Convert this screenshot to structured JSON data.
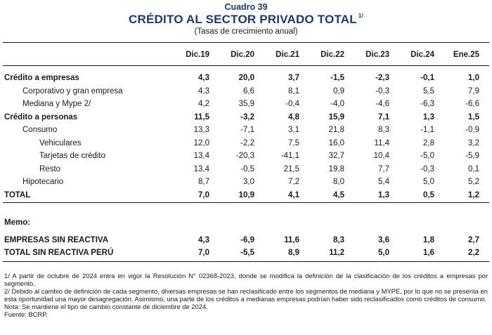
{
  "header": {
    "cuadro": "Cuadro 39",
    "title": "CRÉDITO AL SECTOR PRIVADO TOTAL",
    "title_note": "1/",
    "subtitle": "(Tasas de crecimiento anual)"
  },
  "columns": [
    "Dic.19",
    "Dic.20",
    "Dic.21",
    "Dic.22",
    "Dic.23",
    "Dic.24",
    "Ene.25"
  ],
  "rows": [
    {
      "label": "Crédito a empresas",
      "values": [
        "4,3",
        "20,0",
        "3,7",
        "-1,5",
        "-2,3",
        "-0,1",
        "1,0"
      ]
    },
    {
      "label": "Corporativo y gran empresa",
      "values": [
        "4,3",
        "6,6",
        "8,1",
        "0,9",
        "-0,3",
        "5,5",
        "7,9"
      ]
    },
    {
      "label": "Mediana y Mype 2/",
      "values": [
        "4,2",
        "35,9",
        "-0,4",
        "-4,0",
        "-4,6",
        "-6,3",
        "-6,6"
      ]
    },
    {
      "label": "Crédito a personas",
      "values": [
        "11,5",
        "-3,2",
        "4,8",
        "15,9",
        "7,1",
        "1,3",
        "1,5"
      ]
    },
    {
      "label": "Consumo",
      "values": [
        "13,3",
        "-7,1",
        "3,1",
        "21,8",
        "8,3",
        "-1,1",
        "-0,9"
      ]
    },
    {
      "label": "Vehiculares",
      "values": [
        "12,0",
        "-2,2",
        "7,5",
        "16,0",
        "11,4",
        "2,8",
        "3,2"
      ]
    },
    {
      "label": "Tarjetas de crédito",
      "values": [
        "13,4",
        "-20,3",
        "-41,1",
        "32,7",
        "10,4",
        "-5,0",
        "-5,9"
      ]
    },
    {
      "label": "Resto",
      "values": [
        "13,4",
        "-0,5",
        "21,5",
        "19,8",
        "7,7",
        "-0,3",
        "0,1"
      ]
    },
    {
      "label": "Hipotecario",
      "values": [
        "8,7",
        "3,0",
        "7,2",
        "8,0",
        "5,4",
        "5,0",
        "5,2"
      ]
    },
    {
      "label": "TOTAL",
      "values": [
        "7,0",
        "10,9",
        "4,1",
        "4,5",
        "1,3",
        "0,5",
        "1,2"
      ]
    }
  ],
  "memo": {
    "label": "Memo:",
    "rows": [
      {
        "label": "EMPRESAS SIN REACTIVA",
        "values": [
          "4,3",
          "-6,9",
          "11,6",
          "8,3",
          "3,6",
          "1,8",
          "2,7"
        ]
      },
      {
        "label": "TOTAL SIN REACTIVA PERÚ",
        "values": [
          "7,0",
          "-5,5",
          "8,9",
          "11,2",
          "5,0",
          "1,6",
          "2,2"
        ]
      }
    ]
  },
  "notes": [
    "1/ A partir de octubre de 2024 entra en vigor la Resolución N° 02368-2023, donde se modifica la definición de la clasificación de los créditos a empresas por segmento.",
    "2/ Debido al cambio de definición de cada segmento, diversas empresas se han reclasificado entre los segmentos de mediana y MYPE, por lo que no se presenta en esta oportunidad una mayor desagregación. Asimismo, una parte de los créditos a medianas empresas podrían haber sido reclasificados como créditos de consumo.",
    "Nota: Se mantiene el tipo de cambio constante de diciembre de 2024.",
    "Fuente: BCRP."
  ]
}
